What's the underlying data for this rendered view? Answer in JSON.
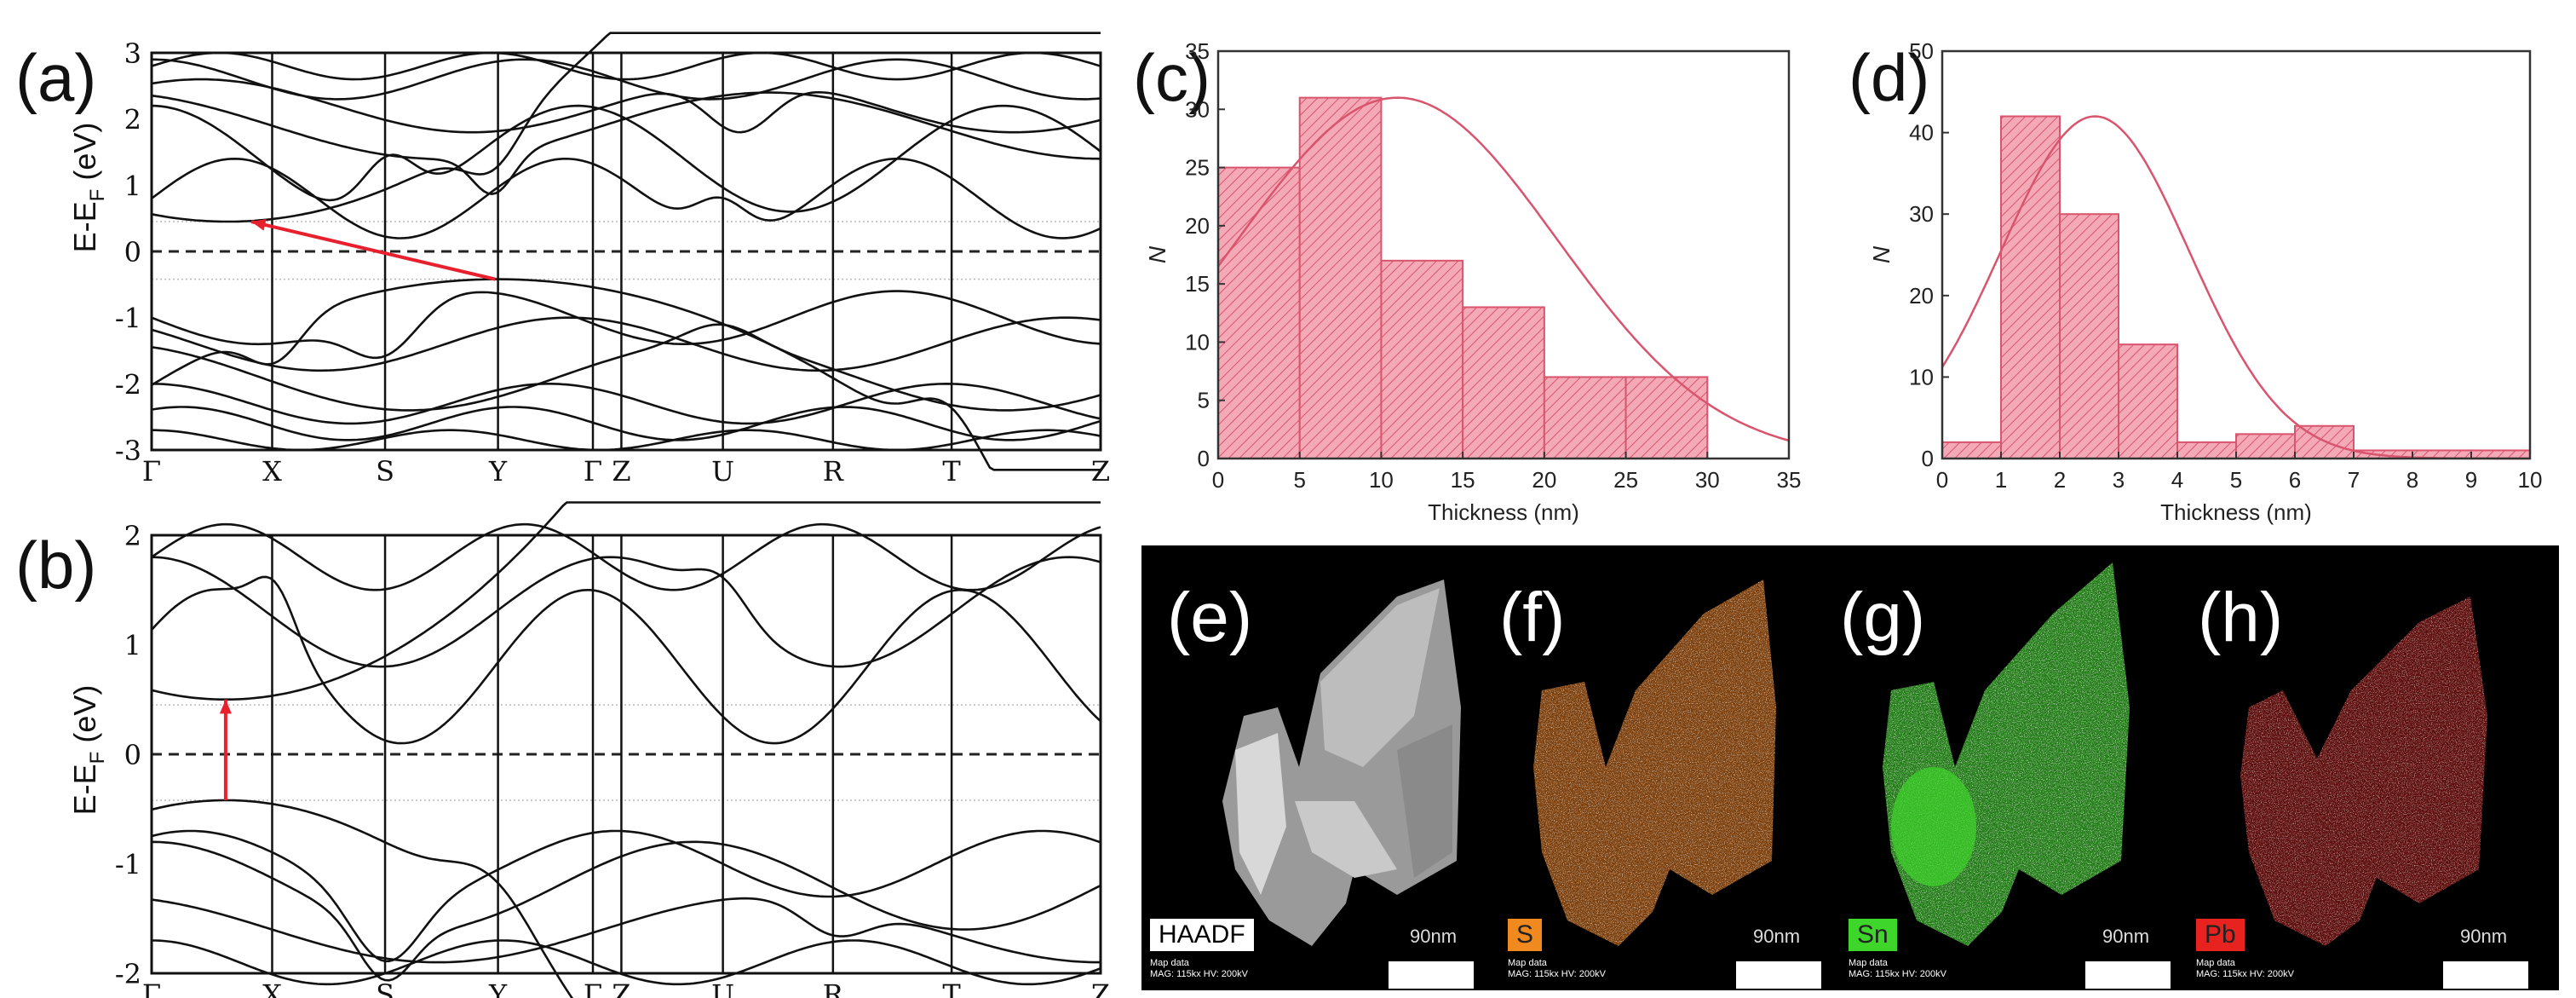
{
  "panels": {
    "a": {
      "label": "(a)",
      "ylabel": "E-E",
      "ysub": "F",
      "yunit": " (eV)",
      "yticks": [
        "3",
        "2",
        "1",
        "0",
        "-1",
        "-2",
        "-3"
      ],
      "kpoints": [
        "Γ",
        "X",
        "S",
        "Y",
        "Γ",
        "Z",
        "U",
        "R",
        "T",
        "Z"
      ]
    },
    "b": {
      "label": "(b)",
      "ylabel": "E-E",
      "ysub": "F",
      "yunit": " (eV)",
      "yticks": [
        "2",
        "1",
        "0",
        "-1",
        "-2"
      ],
      "kpoints": [
        "Γ",
        "X",
        "S",
        "Y",
        "Γ",
        "Z",
        "U",
        "R",
        "T",
        "Z"
      ]
    },
    "e": {
      "label": "(e)",
      "chip": "HAADF",
      "scale": "90nm",
      "mapdata": [
        "Map data",
        "MAG: 115kx  HV: 200kV"
      ]
    },
    "f": {
      "label": "(f)",
      "chip": "S",
      "scale": "90nm",
      "mapdata": [
        "Map data",
        "MAG: 115kx  HV: 200kV"
      ]
    },
    "g": {
      "label": "(g)",
      "chip": "Sn",
      "scale": "90nm",
      "mapdata": [
        "Map data",
        "MAG: 115kx  HV: 200kV"
      ]
    },
    "h": {
      "label": "(h)",
      "chip": "Pb",
      "scale": "90nm",
      "mapdata": [
        "Map data",
        "MAG: 115kx  HV: 200kV"
      ]
    }
  },
  "colors": {
    "hist_fill": "#f4a9b7",
    "hist_edge": "#d9546d",
    "arrow": "#e8202e",
    "S": "#f08a1e",
    "Sn": "#3ed62b",
    "Pb": "#e8231f"
  },
  "chart_data": [
    {
      "type": "bar",
      "label": "(c)",
      "title": "",
      "xlabel": "Thickness (nm)",
      "ylabel": "N",
      "bins": [
        [
          0,
          5
        ],
        [
          5,
          10
        ],
        [
          10,
          15
        ],
        [
          15,
          20
        ],
        [
          20,
          25
        ],
        [
          25,
          30
        ]
      ],
      "values": [
        25,
        31,
        17,
        13,
        7,
        7
      ],
      "xlim": [
        0,
        35
      ],
      "ylim": [
        0,
        35
      ],
      "xticks": [
        "0",
        "5",
        "10",
        "15",
        "20",
        "25",
        "30",
        "35"
      ],
      "yticks": [
        "0",
        "5",
        "10",
        "15",
        "20",
        "25",
        "30",
        "35"
      ],
      "fit": {
        "kind": "gaussian",
        "mean": 11,
        "sigma": 9.8,
        "peak": 31
      }
    },
    {
      "type": "bar",
      "label": "(d)",
      "title": "",
      "xlabel": "Thickness (nm)",
      "ylabel": "N",
      "bins": [
        [
          0,
          1
        ],
        [
          1,
          2
        ],
        [
          2,
          3
        ],
        [
          3,
          4
        ],
        [
          4,
          5
        ],
        [
          5,
          6
        ],
        [
          6,
          7
        ],
        [
          7,
          8
        ],
        [
          8,
          9
        ],
        [
          9,
          10
        ]
      ],
      "values": [
        2,
        42,
        30,
        14,
        2,
        3,
        4,
        1,
        1,
        1
      ],
      "xlim": [
        0,
        10
      ],
      "ylim": [
        0,
        50
      ],
      "xticks": [
        "0",
        "1",
        "2",
        "3",
        "4",
        "5",
        "6",
        "7",
        "8",
        "9",
        "10"
      ],
      "yticks": [
        "0",
        "10",
        "20",
        "30",
        "40",
        "50"
      ],
      "fit": {
        "kind": "gaussian",
        "mean": 2.6,
        "sigma": 1.6,
        "peak": 42
      }
    }
  ]
}
